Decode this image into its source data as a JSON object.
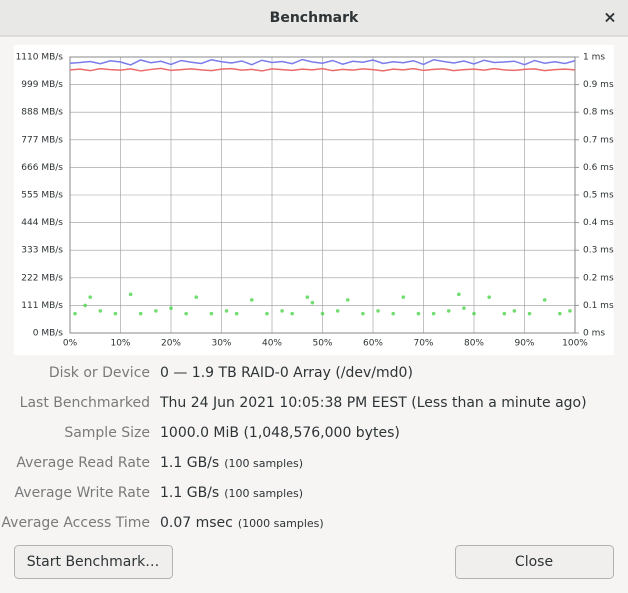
{
  "window": {
    "title": "Benchmark",
    "close": "×"
  },
  "chart_data": {
    "type": "line",
    "grid": true,
    "xlim": [
      0,
      100
    ],
    "ylim": [
      0,
      1110
    ],
    "y2lim": [
      0,
      1
    ],
    "xticks": [
      {
        "value": 0,
        "label": "0%"
      },
      {
        "value": 10,
        "label": "10%"
      },
      {
        "value": 20,
        "label": "20%"
      },
      {
        "value": 30,
        "label": "30%"
      },
      {
        "value": 40,
        "label": "40%"
      },
      {
        "value": 50,
        "label": "50%"
      },
      {
        "value": 60,
        "label": "60%"
      },
      {
        "value": 70,
        "label": "70%"
      },
      {
        "value": 80,
        "label": "80%"
      },
      {
        "value": 90,
        "label": "90%"
      },
      {
        "value": 100,
        "label": "100%"
      }
    ],
    "yticks": [
      {
        "value": 0,
        "label": "0 MB/s"
      },
      {
        "value": 111,
        "label": "111 MB/s"
      },
      {
        "value": 222,
        "label": "222 MB/s"
      },
      {
        "value": 333,
        "label": "333 MB/s"
      },
      {
        "value": 444,
        "label": "444 MB/s"
      },
      {
        "value": 555,
        "label": "555 MB/s"
      },
      {
        "value": 666,
        "label": "666 MB/s"
      },
      {
        "value": 777,
        "label": "777 MB/s"
      },
      {
        "value": 888,
        "label": "888 MB/s"
      },
      {
        "value": 999,
        "label": "999 MB/s"
      },
      {
        "value": 1110,
        "label": "1110 MB/s"
      }
    ],
    "y2ticks": [
      {
        "value": 0,
        "label": "0 ms"
      },
      {
        "value": 0.1,
        "label": "0.1 ms"
      },
      {
        "value": 0.2,
        "label": "0.2 ms"
      },
      {
        "value": 0.3,
        "label": "0.3 ms"
      },
      {
        "value": 0.4,
        "label": "0.4 ms"
      },
      {
        "value": 0.5,
        "label": "0.5 ms"
      },
      {
        "value": 0.6,
        "label": "0.6 ms"
      },
      {
        "value": 0.7,
        "label": "0.7 ms"
      },
      {
        "value": 0.8,
        "label": "0.8 ms"
      },
      {
        "value": 0.9,
        "label": "0.9 ms"
      },
      {
        "value": 1,
        "label": "1 ms"
      }
    ],
    "series": [
      {
        "kind": "line",
        "color": "#7b7bea",
        "x": [
          0,
          2,
          4,
          6,
          8,
          10,
          12,
          14,
          16,
          18,
          20,
          22,
          24,
          26,
          28,
          30,
          32,
          34,
          36,
          38,
          40,
          42,
          44,
          46,
          48,
          50,
          52,
          54,
          56,
          58,
          60,
          62,
          64,
          66,
          68,
          70,
          72,
          74,
          76,
          78,
          80,
          82,
          84,
          86,
          88,
          90,
          92,
          94,
          96,
          98,
          100
        ],
        "values": [
          1085,
          1088,
          1092,
          1083,
          1095,
          1090,
          1078,
          1098,
          1087,
          1093,
          1080,
          1096,
          1089,
          1084,
          1099,
          1091,
          1086,
          1094,
          1079,
          1097,
          1088,
          1092,
          1083,
          1100,
          1090,
          1085,
          1096,
          1081,
          1093,
          1089,
          1098,
          1084,
          1091,
          1087,
          1095,
          1080,
          1099,
          1092,
          1086,
          1094,
          1082,
          1097,
          1088,
          1090,
          1093,
          1079,
          1096,
          1085,
          1091,
          1084,
          1095
        ]
      },
      {
        "kind": "line",
        "color": "#ec6a6a",
        "x": [
          0,
          2,
          4,
          6,
          8,
          10,
          12,
          14,
          16,
          18,
          20,
          22,
          24,
          26,
          28,
          30,
          32,
          34,
          36,
          38,
          40,
          42,
          44,
          46,
          48,
          50,
          52,
          54,
          56,
          58,
          60,
          62,
          64,
          66,
          68,
          70,
          72,
          74,
          76,
          78,
          80,
          82,
          84,
          86,
          88,
          90,
          92,
          94,
          96,
          98,
          100
        ],
        "values": [
          1058,
          1061,
          1055,
          1063,
          1059,
          1057,
          1062,
          1054,
          1060,
          1064,
          1056,
          1059,
          1062,
          1058,
          1055,
          1061,
          1063,
          1057,
          1060,
          1054,
          1062,
          1059,
          1056,
          1061,
          1058,
          1063,
          1055,
          1060,
          1057,
          1062,
          1059,
          1054,
          1061,
          1058,
          1063,
          1056,
          1060,
          1062,
          1055,
          1059,
          1061,
          1057,
          1063,
          1058,
          1056,
          1060,
          1062,
          1055,
          1059,
          1061,
          1058
        ]
      },
      {
        "kind": "scatter",
        "axis": "y2",
        "color": "#3fd33f",
        "x": [
          1,
          4,
          6,
          9,
          12,
          14,
          17,
          20,
          23,
          25,
          28,
          31,
          33,
          36,
          39,
          42,
          44,
          47,
          50,
          53,
          55,
          58,
          61,
          64,
          66,
          69,
          72,
          75,
          77,
          80,
          83,
          86,
          88,
          91,
          94,
          97,
          99,
          3,
          48,
          78
        ],
        "values": [
          0.07,
          0.13,
          0.08,
          0.07,
          0.14,
          0.07,
          0.08,
          0.09,
          0.07,
          0.13,
          0.07,
          0.08,
          0.07,
          0.12,
          0.07,
          0.08,
          0.07,
          0.13,
          0.07,
          0.08,
          0.12,
          0.07,
          0.08,
          0.07,
          0.13,
          0.07,
          0.07,
          0.08,
          0.14,
          0.07,
          0.13,
          0.07,
          0.08,
          0.07,
          0.12,
          0.07,
          0.08,
          0.1,
          0.11,
          0.09
        ]
      }
    ]
  },
  "details": [
    {
      "label": "Disk or Device",
      "value": "0 — 1.9 TB RAID-0 Array (/dev/md0)"
    },
    {
      "label": "Last Benchmarked",
      "value": "Thu 24 Jun 2021 10:05:38 PM EEST (Less than a minute ago)"
    },
    {
      "label": "Sample Size",
      "value": "1000.0 MiB (1,048,576,000 bytes)"
    },
    {
      "label": "Average Read Rate",
      "value": "1.1 GB/s",
      "note": "(100 samples)"
    },
    {
      "label": "Average Write Rate",
      "value": "1.1 GB/s",
      "note": "(100 samples)"
    },
    {
      "label": "Average Access Time",
      "value": "0.07 msec",
      "note": "(1000 samples)"
    }
  ],
  "buttons": [
    "Start Benchmark…",
    "Close"
  ]
}
